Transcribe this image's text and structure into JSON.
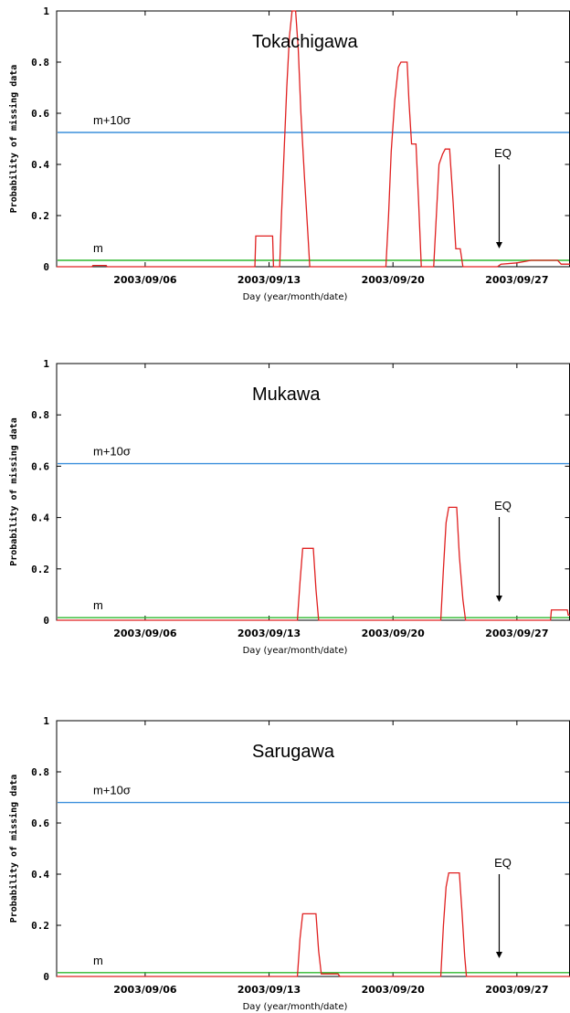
{
  "chart_data": [
    {
      "type": "line",
      "title": "Tokachigawa",
      "xlabel": "Day (year/month/date)",
      "ylabel": "Probability of missing data",
      "ylim": [
        0,
        1
      ],
      "xlim": [
        "2003/09/01",
        "2003/09/30"
      ],
      "x_ticks": [
        "2003/09/06",
        "2003/09/13",
        "2003/09/20",
        "2003/09/27"
      ],
      "y_ticks": [
        "0",
        "0.2",
        "0.4",
        "0.6",
        "0.8",
        "1"
      ],
      "hlines": [
        {
          "label": "m+10σ",
          "value": 0.525,
          "color": "#3a8fdc"
        },
        {
          "label": "m",
          "value": 0.025,
          "color": "#2eb82e"
        }
      ],
      "annotation": {
        "label": "EQ",
        "x": "2003/09/26"
      },
      "series": [
        {
          "color": "#e02020",
          "points": [
            [
              "2003/09/01",
              0
            ],
            [
              "2003/09/03.0",
              0
            ],
            [
              "2003/09/03.05",
              0.005
            ],
            [
              "2003/09/03.8",
              0.005
            ],
            [
              "2003/09/03.85",
              0
            ],
            [
              "2003/09/12.2",
              0
            ],
            [
              "2003/09/12.25",
              0.12
            ],
            [
              "2003/09/13.2",
              0.12
            ],
            [
              "2003/09/13.25",
              0
            ],
            [
              "2003/09/13.6",
              0
            ],
            [
              "2003/09/13.7",
              0.2
            ],
            [
              "2003/09/13.85",
              0.45
            ],
            [
              "2003/09/14.0",
              0.7
            ],
            [
              "2003/09/14.15",
              0.9
            ],
            [
              "2003/09/14.3",
              1.0
            ],
            [
              "2003/09/14.5",
              1.0
            ],
            [
              "2003/09/14.65",
              0.85
            ],
            [
              "2003/09/14.8",
              0.6
            ],
            [
              "2003/09/15.0",
              0.35
            ],
            [
              "2003/09/15.2",
              0.12
            ],
            [
              "2003/09/15.3",
              0
            ],
            [
              "2003/09/19.6",
              0
            ],
            [
              "2003/09/19.75",
              0.2
            ],
            [
              "2003/09/19.9",
              0.45
            ],
            [
              "2003/09/20.1",
              0.65
            ],
            [
              "2003/09/20.3",
              0.78
            ],
            [
              "2003/09/20.45",
              0.8
            ],
            [
              "2003/09/20.8",
              0.8
            ],
            [
              "2003/09/20.9",
              0.65
            ],
            [
              "2003/09/21.05",
              0.48
            ],
            [
              "2003/09/21.3",
              0.48
            ],
            [
              "2003/09/21.45",
              0.25
            ],
            [
              "2003/09/21.6",
              0
            ],
            [
              "2003/09/22.3",
              0
            ],
            [
              "2003/09/22.45",
              0.2
            ],
            [
              "2003/09/22.6",
              0.4
            ],
            [
              "2003/09/22.8",
              0.44
            ],
            [
              "2003/09/22.95",
              0.46
            ],
            [
              "2003/09/23.2",
              0.46
            ],
            [
              "2003/09/23.4",
              0.25
            ],
            [
              "2003/09/23.55",
              0.07
            ],
            [
              "2003/09/23.8",
              0.07
            ],
            [
              "2003/09/23.95",
              0
            ],
            [
              "2003/09/25.9",
              0
            ],
            [
              "2003/09/26.1",
              0.01
            ],
            [
              "2003/09/27.0",
              0.015
            ],
            [
              "2003/09/27.8",
              0.025
            ],
            [
              "2003/09/29.3",
              0.025
            ],
            [
              "2003/09/29.5",
              0.01
            ],
            [
              "2003/09/30",
              0.01
            ]
          ]
        }
      ]
    },
    {
      "type": "line",
      "title": "Mukawa",
      "xlabel": "Day (year/month/date)",
      "ylabel": "Probability of missing data",
      "ylim": [
        0,
        1
      ],
      "xlim": [
        "2003/09/01",
        "2003/09/30"
      ],
      "x_ticks": [
        "2003/09/06",
        "2003/09/13",
        "2003/09/20",
        "2003/09/27"
      ],
      "y_ticks": [
        "0",
        "0.2",
        "0.4",
        "0.6",
        "0.8",
        "1"
      ],
      "hlines": [
        {
          "label": "m+10σ",
          "value": 0.61,
          "color": "#3a8fdc"
        },
        {
          "label": "m",
          "value": 0.01,
          "color": "#2eb82e"
        }
      ],
      "annotation": {
        "label": "EQ",
        "x": "2003/09/26"
      },
      "series": [
        {
          "color": "#e02020",
          "points": [
            [
              "2003/09/01",
              0
            ],
            [
              "2003/09/14.6",
              0
            ],
            [
              "2003/09/14.75",
              0.15
            ],
            [
              "2003/09/14.9",
              0.28
            ],
            [
              "2003/09/15.5",
              0.28
            ],
            [
              "2003/09/15.65",
              0.12
            ],
            [
              "2003/09/15.8",
              0
            ],
            [
              "2003/09/22.7",
              0
            ],
            [
              "2003/09/22.85",
              0.2
            ],
            [
              "2003/09/23.0",
              0.38
            ],
            [
              "2003/09/23.15",
              0.44
            ],
            [
              "2003/09/23.6",
              0.44
            ],
            [
              "2003/09/23.75",
              0.25
            ],
            [
              "2003/09/23.95",
              0.08
            ],
            [
              "2003/09/24.1",
              0
            ],
            [
              "2003/09/28.9",
              0
            ],
            [
              "2003/09/28.95",
              0.04
            ],
            [
              "2003/09/29.85",
              0.04
            ],
            [
              "2003/09/29.9",
              0.02
            ],
            [
              "2003/09/30",
              0.02
            ]
          ]
        }
      ]
    },
    {
      "type": "line",
      "title": "Sarugawa",
      "xlabel": "Day (year/month/date)",
      "ylabel": "Probability of missing data",
      "ylim": [
        0,
        1
      ],
      "xlim": [
        "2003/09/01",
        "2003/09/30"
      ],
      "x_ticks": [
        "2003/09/06",
        "2003/09/13",
        "2003/09/20",
        "2003/09/27"
      ],
      "y_ticks": [
        "0",
        "0.2",
        "0.4",
        "0.6",
        "0.8",
        "1"
      ],
      "hlines": [
        {
          "label": "m+10σ",
          "value": 0.68,
          "color": "#3a8fdc"
        },
        {
          "label": "m",
          "value": 0.015,
          "color": "#2eb82e"
        }
      ],
      "annotation": {
        "label": "EQ",
        "x": "2003/09/26"
      },
      "series": [
        {
          "color": "#e02020",
          "points": [
            [
              "2003/09/01",
              0
            ],
            [
              "2003/09/14.6",
              0
            ],
            [
              "2003/09/14.75",
              0.15
            ],
            [
              "2003/09/14.9",
              0.245
            ],
            [
              "2003/09/15.65",
              0.245
            ],
            [
              "2003/09/15.8",
              0.1
            ],
            [
              "2003/09/15.95",
              0.01
            ],
            [
              "2003/09/16.9",
              0.01
            ],
            [
              "2003/09/17.0",
              0
            ],
            [
              "2003/09/22.7",
              0
            ],
            [
              "2003/09/22.85",
              0.2
            ],
            [
              "2003/09/23.0",
              0.35
            ],
            [
              "2003/09/23.15",
              0.405
            ],
            [
              "2003/09/23.75",
              0.405
            ],
            [
              "2003/09/23.9",
              0.25
            ],
            [
              "2003/09/24.05",
              0.08
            ],
            [
              "2003/09/24.15",
              0
            ],
            [
              "2003/09/30",
              0
            ]
          ]
        }
      ]
    }
  ]
}
